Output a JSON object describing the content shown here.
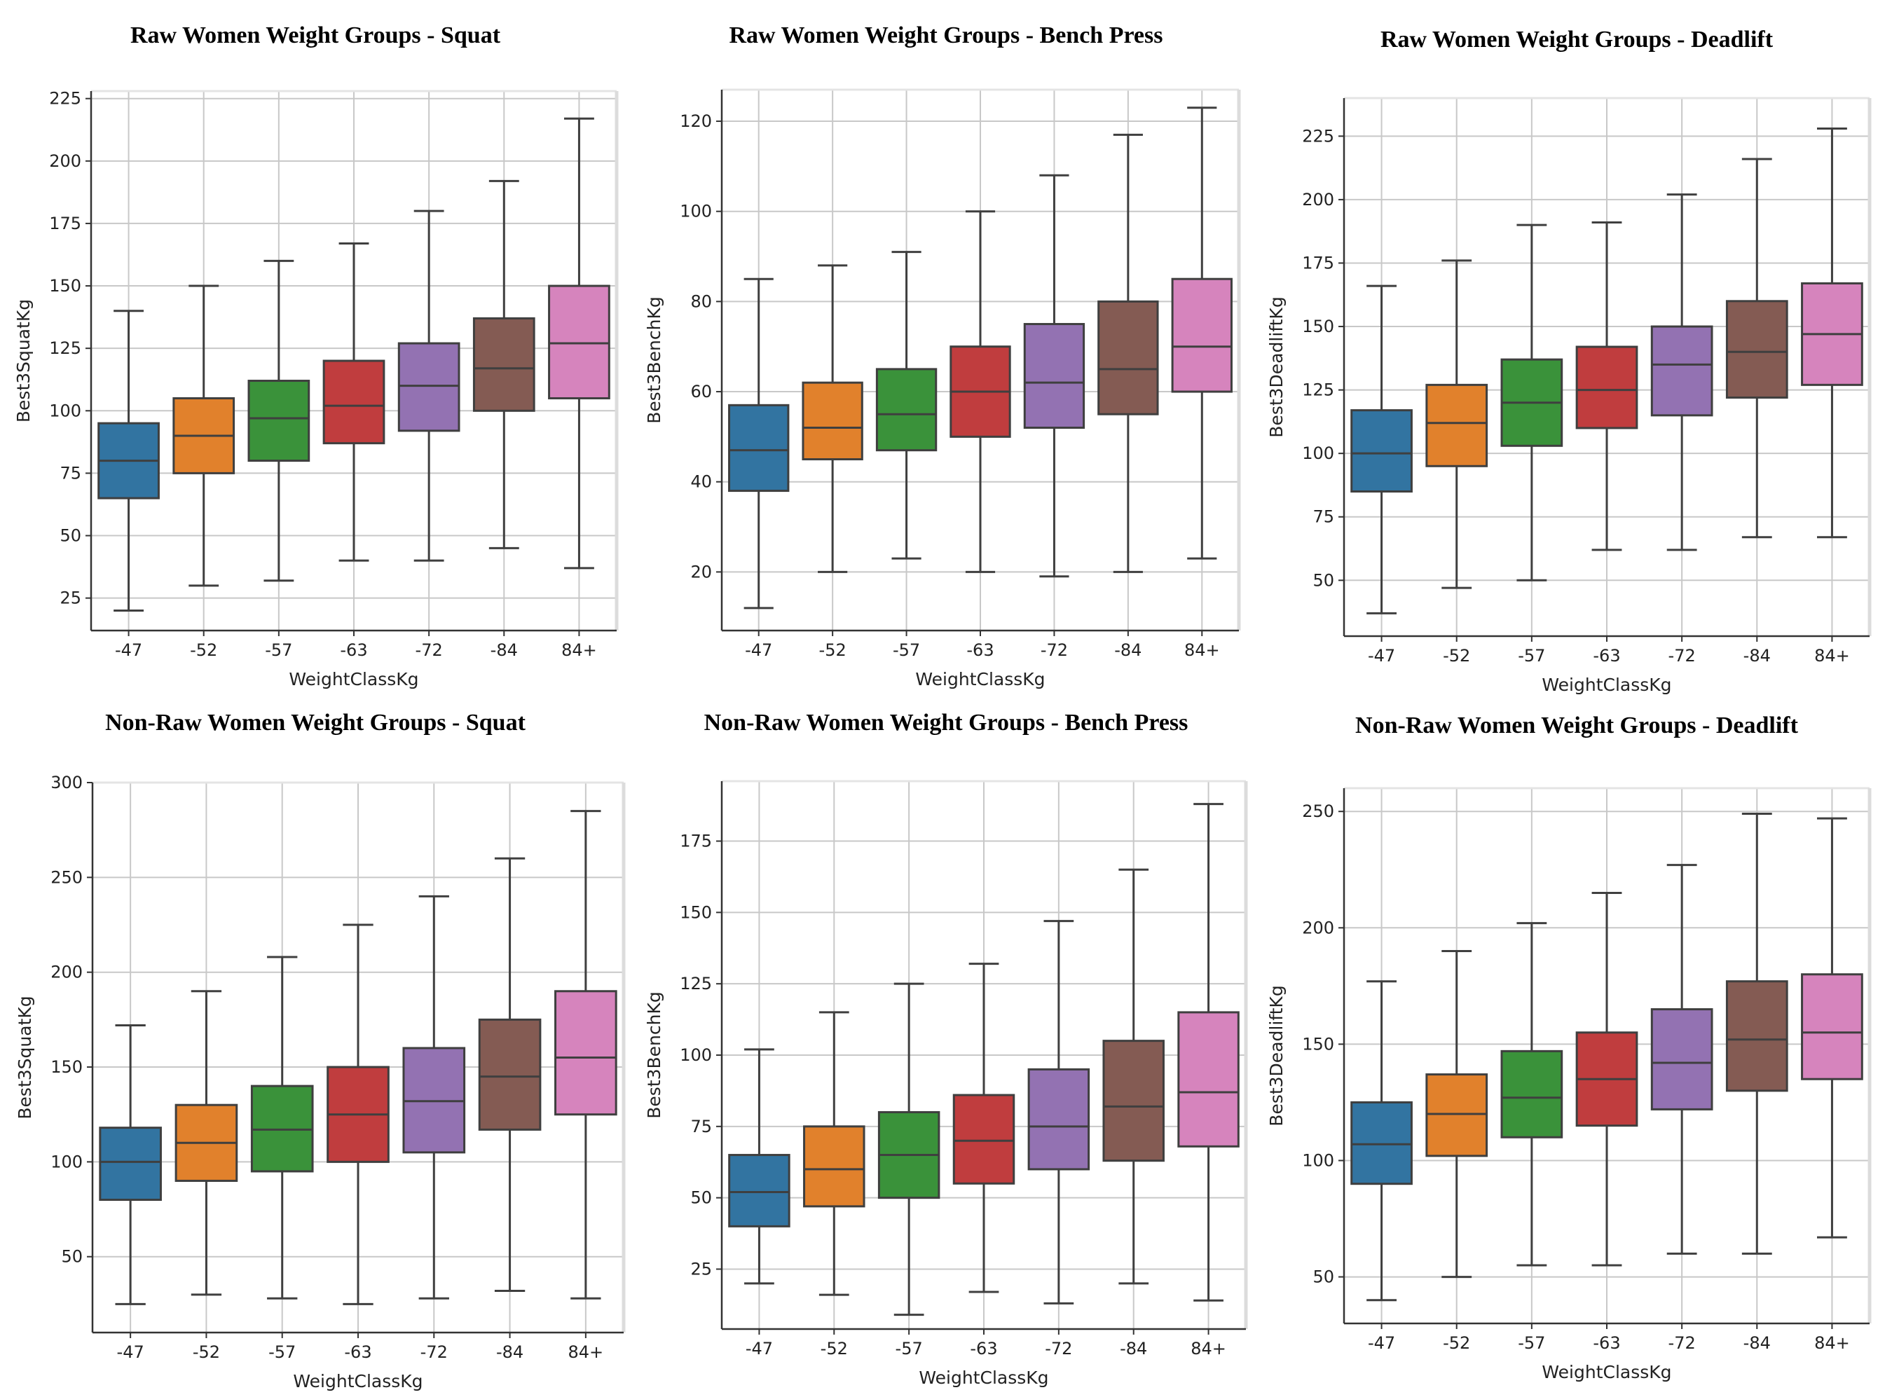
{
  "chart_data": [
    {
      "type": "box",
      "title": "Raw Women Weight Groups - Squat",
      "xlabel": "WeightClassKg",
      "ylabel": "Best3SquatKg",
      "categories": [
        "-47",
        "-52",
        "-57",
        "-63",
        "-72",
        "-84",
        "84+"
      ],
      "ylim": [
        12,
        228
      ],
      "yticks": [
        25,
        50,
        75,
        100,
        125,
        150,
        175,
        200,
        225
      ],
      "grid": true,
      "boxes": [
        {
          "whislo": 20,
          "q1": 65,
          "med": 80,
          "q3": 95,
          "whishi": 140
        },
        {
          "whislo": 30,
          "q1": 75,
          "med": 90,
          "q3": 105,
          "whishi": 150
        },
        {
          "whislo": 32,
          "q1": 80,
          "med": 97,
          "q3": 112,
          "whishi": 160
        },
        {
          "whislo": 40,
          "q1": 87,
          "med": 102,
          "q3": 120,
          "whishi": 167
        },
        {
          "whislo": 40,
          "q1": 92,
          "med": 110,
          "q3": 127,
          "whishi": 180
        },
        {
          "whislo": 45,
          "q1": 100,
          "med": 117,
          "q3": 137,
          "whishi": 192
        },
        {
          "whislo": 37,
          "q1": 105,
          "med": 127,
          "q3": 150,
          "whishi": 217
        }
      ]
    },
    {
      "type": "box",
      "title": "Raw Women Weight Groups - Bench Press",
      "xlabel": "WeightClassKg",
      "ylabel": "Best3BenchKg",
      "categories": [
        "-47",
        "-52",
        "-57",
        "-63",
        "-72",
        "-84",
        "84+"
      ],
      "ylim": [
        7,
        127
      ],
      "yticks": [
        20,
        40,
        60,
        80,
        100,
        120
      ],
      "grid": true,
      "boxes": [
        {
          "whislo": 12,
          "q1": 38,
          "med": 47,
          "q3": 57,
          "whishi": 85
        },
        {
          "whislo": 20,
          "q1": 45,
          "med": 52,
          "q3": 62,
          "whishi": 88
        },
        {
          "whislo": 23,
          "q1": 47,
          "med": 55,
          "q3": 65,
          "whishi": 91
        },
        {
          "whislo": 20,
          "q1": 50,
          "med": 60,
          "q3": 70,
          "whishi": 100
        },
        {
          "whislo": 19,
          "q1": 52,
          "med": 62,
          "q3": 75,
          "whishi": 108
        },
        {
          "whislo": 20,
          "q1": 55,
          "med": 65,
          "q3": 80,
          "whishi": 117
        },
        {
          "whislo": 23,
          "q1": 60,
          "med": 70,
          "q3": 85,
          "whishi": 123
        }
      ]
    },
    {
      "type": "box",
      "title": "Raw Women Weight Groups - Deadlift",
      "xlabel": "WeightClassKg",
      "ylabel": "Best3DeadliftKg",
      "categories": [
        "-47",
        "-52",
        "-57",
        "-63",
        "-72",
        "-84",
        "84+"
      ],
      "ylim": [
        28,
        240
      ],
      "yticks": [
        50,
        75,
        100,
        125,
        150,
        175,
        200,
        225
      ],
      "grid": true,
      "boxes": [
        {
          "whislo": 37,
          "q1": 85,
          "med": 100,
          "q3": 117,
          "whishi": 166
        },
        {
          "whislo": 47,
          "q1": 95,
          "med": 112,
          "q3": 127,
          "whishi": 176
        },
        {
          "whislo": 50,
          "q1": 103,
          "med": 120,
          "q3": 137,
          "whishi": 190
        },
        {
          "whislo": 62,
          "q1": 110,
          "med": 125,
          "q3": 142,
          "whishi": 191
        },
        {
          "whislo": 62,
          "q1": 115,
          "med": 135,
          "q3": 150,
          "whishi": 202
        },
        {
          "whislo": 67,
          "q1": 122,
          "med": 140,
          "q3": 160,
          "whishi": 216
        },
        {
          "whislo": 67,
          "q1": 127,
          "med": 147,
          "q3": 167,
          "whishi": 228
        }
      ]
    },
    {
      "type": "box",
      "title": "Non-Raw Women Weight Groups - Squat",
      "xlabel": "WeightClassKg",
      "ylabel": "Best3SquatKg",
      "categories": [
        "-47",
        "-52",
        "-57",
        "-63",
        "-72",
        "-84",
        "84+"
      ],
      "ylim": [
        10,
        300
      ],
      "yticks": [
        50,
        100,
        150,
        200,
        250,
        300
      ],
      "grid": true,
      "boxes": [
        {
          "whislo": 25,
          "q1": 80,
          "med": 100,
          "q3": 118,
          "whishi": 172
        },
        {
          "whislo": 30,
          "q1": 90,
          "med": 110,
          "q3": 130,
          "whishi": 190
        },
        {
          "whislo": 28,
          "q1": 95,
          "med": 117,
          "q3": 140,
          "whishi": 208
        },
        {
          "whislo": 25,
          "q1": 100,
          "med": 125,
          "q3": 150,
          "whishi": 225
        },
        {
          "whislo": 28,
          "q1": 105,
          "med": 132,
          "q3": 160,
          "whishi": 240
        },
        {
          "whislo": 32,
          "q1": 117,
          "med": 145,
          "q3": 175,
          "whishi": 260
        },
        {
          "whislo": 28,
          "q1": 125,
          "med": 155,
          "q3": 190,
          "whishi": 285
        }
      ]
    },
    {
      "type": "box",
      "title": "Non-Raw Women Weight Groups - Bench Press",
      "xlabel": "WeightClassKg",
      "ylabel": "Best3BenchKg",
      "categories": [
        "-47",
        "-52",
        "-57",
        "-63",
        "-72",
        "-84",
        "84+"
      ],
      "ylim": [
        4,
        196
      ],
      "yticks": [
        25,
        50,
        75,
        100,
        125,
        150,
        175
      ],
      "grid": true,
      "boxes": [
        {
          "whislo": 20,
          "q1": 40,
          "med": 52,
          "q3": 65,
          "whishi": 102
        },
        {
          "whislo": 16,
          "q1": 47,
          "med": 60,
          "q3": 75,
          "whishi": 115
        },
        {
          "whislo": 9,
          "q1": 50,
          "med": 65,
          "q3": 80,
          "whishi": 125
        },
        {
          "whislo": 17,
          "q1": 55,
          "med": 70,
          "q3": 86,
          "whishi": 132
        },
        {
          "whislo": 13,
          "q1": 60,
          "med": 75,
          "q3": 95,
          "whishi": 147
        },
        {
          "whislo": 20,
          "q1": 63,
          "med": 82,
          "q3": 105,
          "whishi": 165
        },
        {
          "whislo": 14,
          "q1": 68,
          "med": 87,
          "q3": 115,
          "whishi": 188
        }
      ]
    },
    {
      "type": "box",
      "title": "Non-Raw Women Weight Groups - Deadlift",
      "xlabel": "WeightClassKg",
      "ylabel": "Best3DeadliftKg",
      "categories": [
        "-47",
        "-52",
        "-57",
        "-63",
        "-72",
        "-84",
        "84+"
      ],
      "ylim": [
        30,
        260
      ],
      "yticks": [
        50,
        100,
        150,
        200,
        250
      ],
      "grid": true,
      "boxes": [
        {
          "whislo": 40,
          "q1": 90,
          "med": 107,
          "q3": 125,
          "whishi": 177
        },
        {
          "whislo": 50,
          "q1": 102,
          "med": 120,
          "q3": 137,
          "whishi": 190
        },
        {
          "whislo": 55,
          "q1": 110,
          "med": 127,
          "q3": 147,
          "whishi": 202
        },
        {
          "whislo": 55,
          "q1": 115,
          "med": 135,
          "q3": 155,
          "whishi": 215
        },
        {
          "whislo": 60,
          "q1": 122,
          "med": 142,
          "q3": 165,
          "whishi": 227
        },
        {
          "whislo": 60,
          "q1": 130,
          "med": 152,
          "q3": 177,
          "whishi": 249
        },
        {
          "whislo": 67,
          "q1": 135,
          "med": 155,
          "q3": 180,
          "whishi": 247
        }
      ]
    }
  ],
  "palette": [
    "#3274a1",
    "#e1812c",
    "#3a923a",
    "#c03d3e",
    "#9372b2",
    "#845b53",
    "#d684bd"
  ],
  "box_line_color": "#3f3f3f",
  "grid_color": "#c8c8c8"
}
